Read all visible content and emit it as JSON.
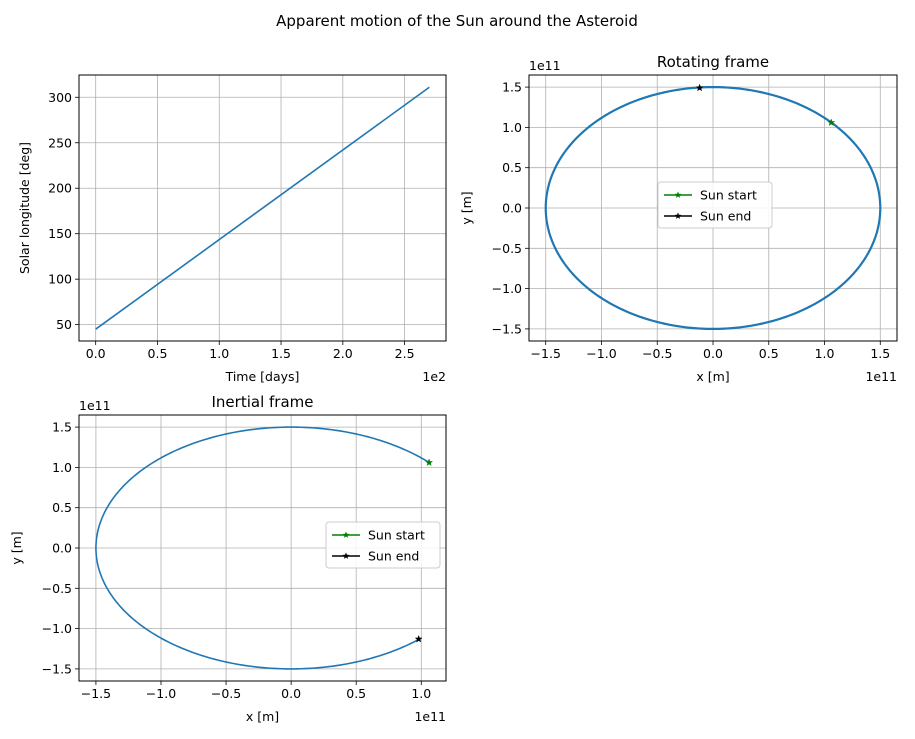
{
  "figure_title": "Apparent motion of the Sun around the Asteroid",
  "colors": {
    "series": "#1f77b4",
    "grid": "#b0b0b0",
    "start": "green",
    "end": "black"
  },
  "chart_data": [
    {
      "type": "line",
      "title": "",
      "xlabel": "Time [days]",
      "ylabel": "Solar longitude [deg]",
      "x_offset_text": "1e2",
      "y_offset_text": "",
      "xlim": [
        -0.135,
        2.835
      ],
      "ylim": [
        32,
        324.5
      ],
      "xticks": [
        0,
        0.5,
        1.0,
        1.5,
        2.0,
        2.5
      ],
      "xtick_labels": [
        "0.0",
        "0.5",
        "1.0",
        "1.5",
        "2.0",
        "2.5"
      ],
      "yticks": [
        50,
        100,
        150,
        200,
        250,
        300
      ],
      "ytick_labels": [
        "50",
        "100",
        "150",
        "200",
        "250",
        "300"
      ],
      "grid": true,
      "series": [
        {
          "x": [
            0,
            2.7
          ],
          "y": [
            45,
            311
          ]
        }
      ]
    },
    {
      "type": "line",
      "title": "Rotating frame",
      "xlabel": "x [m]",
      "ylabel": "y [m]",
      "x_offset_text": "1e11",
      "y_offset_text": "1e11",
      "xlim": [
        -1.65,
        1.65
      ],
      "ylim": [
        -1.65,
        1.65
      ],
      "xticks": [
        -1.5,
        -1.0,
        -0.5,
        0.0,
        0.5,
        1.0,
        1.5
      ],
      "xtick_labels": [
        "−1.5",
        "−1.0",
        "−0.5",
        "0.0",
        "0.5",
        "1.0",
        "1.5"
      ],
      "yticks": [
        -1.5,
        -1.0,
        -0.5,
        0.0,
        0.5,
        1.0,
        1.5
      ],
      "ytick_labels": [
        "−1.5",
        "−1.0",
        "−0.5",
        "0.0",
        "0.5",
        "1.0",
        "1.5"
      ],
      "grid": true,
      "orbit": {
        "radius": 1.5,
        "arc_start_deg": 0,
        "arc_end_deg": 360,
        "thickness": 2.2
      },
      "markers": [
        {
          "name": "Sun start",
          "x": 1.06,
          "y": 1.06,
          "color": "green"
        },
        {
          "name": "Sun end",
          "x": -0.12,
          "y": 1.49,
          "color": "black"
        }
      ],
      "legend": {
        "placement": "center",
        "entries": [
          "Sun start",
          "Sun end"
        ]
      }
    },
    {
      "type": "line",
      "title": "Inertial frame",
      "xlabel": "x [m]",
      "ylabel": "y [m]",
      "x_offset_text": "1e11",
      "y_offset_text": "1e11",
      "xlim": [
        -1.63,
        1.19
      ],
      "ylim": [
        -1.65,
        1.65
      ],
      "xticks": [
        -1.5,
        -1.0,
        -0.5,
        0.0,
        0.5,
        1.0
      ],
      "xtick_labels": [
        "−1.5",
        "−1.0",
        "−0.5",
        "0.0",
        "0.5",
        "1.0"
      ],
      "yticks": [
        -1.5,
        -1.0,
        -0.5,
        0.0,
        0.5,
        1.0,
        1.5
      ],
      "ytick_labels": [
        "−1.5",
        "−1.0",
        "−0.5",
        "0.0",
        "0.5",
        "1.0",
        "1.5"
      ],
      "grid": true,
      "orbit": {
        "radius": 1.5,
        "arc_start_deg": 45,
        "arc_end_deg": 311,
        "thickness": 1.6
      },
      "markers": [
        {
          "name": "Sun start",
          "x": 1.06,
          "y": 1.06,
          "color": "green"
        },
        {
          "name": "Sun end",
          "x": 0.98,
          "y": -1.13,
          "color": "black"
        }
      ],
      "legend": {
        "placement": "center right",
        "entries": [
          "Sun start",
          "Sun end"
        ]
      }
    }
  ]
}
